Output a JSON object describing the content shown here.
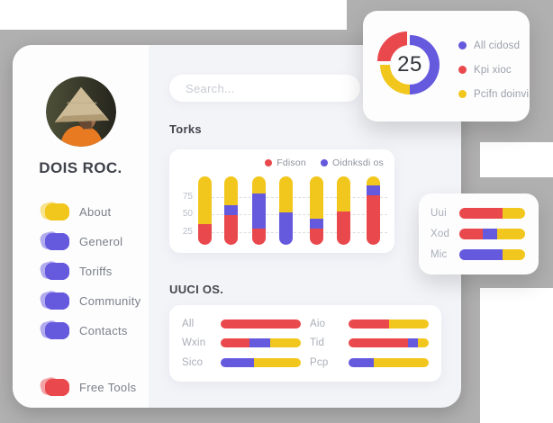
{
  "colors": {
    "red": "#e9494d",
    "yellow": "#f2c71d",
    "purple": "#6559dd",
    "backdrop_gray": "#b1b0b0"
  },
  "profile": {
    "name": "DOIS ROC.",
    "avatar": "person-wearing-conical-straw-hat"
  },
  "menu": {
    "items": [
      {
        "label": "About",
        "color": "#f2c71d"
      },
      {
        "label": "Generol",
        "color": "#6559dd"
      },
      {
        "label": "Toriffs",
        "color": "#6559dd"
      },
      {
        "label": "Community",
        "color": "#6559dd"
      },
      {
        "label": "Contacts",
        "color": "#6559dd"
      }
    ],
    "footer": {
      "label": "Free Tools",
      "color": "#e9494d"
    }
  },
  "search": {
    "placeholder": "Search..."
  },
  "torks": {
    "title": "Torks",
    "legend": [
      {
        "label": "Fdison",
        "color": "red"
      },
      {
        "label": "Oidnksdi os",
        "color": "purple"
      }
    ],
    "y_ticks": [
      "75",
      "50",
      "25"
    ],
    "bars": [
      {
        "segments": [
          {
            "color": "red",
            "pct": 30
          },
          {
            "color": "yellow",
            "pct": 70
          }
        ]
      },
      {
        "segments": [
          {
            "color": "red",
            "pct": 43
          },
          {
            "color": "purple",
            "pct": 15
          },
          {
            "color": "yellow",
            "pct": 42
          }
        ]
      },
      {
        "segments": [
          {
            "color": "red",
            "pct": 24
          },
          {
            "color": "purple",
            "pct": 51
          },
          {
            "color": "yellow",
            "pct": 25
          }
        ]
      },
      {
        "segments": [
          {
            "color": "purple",
            "pct": 48
          },
          {
            "color": "yellow",
            "pct": 52
          }
        ]
      },
      {
        "segments": [
          {
            "color": "red",
            "pct": 24
          },
          {
            "color": "purple",
            "pct": 14
          },
          {
            "color": "yellow",
            "pct": 62
          }
        ]
      },
      {
        "segments": [
          {
            "color": "red",
            "pct": 49
          },
          {
            "color": "yellow",
            "pct": 51
          }
        ]
      },
      {
        "segments": [
          {
            "color": "red",
            "pct": 73
          },
          {
            "color": "purple",
            "pct": 14
          },
          {
            "color": "yellow",
            "pct": 13
          }
        ]
      }
    ]
  },
  "uuci": {
    "title": "UUCI OS.",
    "rows": [
      {
        "label": "All",
        "segments": [
          {
            "color": "red",
            "pct": 100
          }
        ]
      },
      {
        "label": "Wxin",
        "segments": [
          {
            "color": "red",
            "pct": 36
          },
          {
            "color": "purple",
            "pct": 26
          },
          {
            "color": "yellow",
            "pct": 38
          }
        ]
      },
      {
        "label": "Sico",
        "segments": [
          {
            "color": "purple",
            "pct": 42
          },
          {
            "color": "yellow",
            "pct": 58
          }
        ]
      },
      {
        "label": "Aio",
        "segments": [
          {
            "color": "red",
            "pct": 50
          },
          {
            "color": "yellow",
            "pct": 50
          }
        ]
      },
      {
        "label": "Tid",
        "segments": [
          {
            "color": "red",
            "pct": 74
          },
          {
            "color": "purple",
            "pct": 13
          },
          {
            "color": "yellow",
            "pct": 13
          }
        ]
      },
      {
        "label": "Pcp",
        "segments": [
          {
            "color": "purple",
            "pct": 31
          },
          {
            "color": "yellow",
            "pct": 69
          }
        ]
      }
    ]
  },
  "donut": {
    "center_value": "25",
    "slices": [
      {
        "label": "All cidosd",
        "color": "purple",
        "pct": 50
      },
      {
        "label": "Kpi xioc",
        "color": "red",
        "pct": 25
      },
      {
        "label": "Pcifn doinvi",
        "color": "yellow",
        "pct": 25
      }
    ]
  },
  "mini": {
    "rows": [
      {
        "label": "Uui",
        "segments": [
          {
            "color": "red",
            "pct": 66
          },
          {
            "color": "yellow",
            "pct": 34
          }
        ]
      },
      {
        "label": "Xod",
        "segments": [
          {
            "color": "red",
            "pct": 36
          },
          {
            "color": "purple",
            "pct": 21
          },
          {
            "color": "yellow",
            "pct": 43
          }
        ]
      },
      {
        "label": "Mic",
        "segments": [
          {
            "color": "purple",
            "pct": 66
          },
          {
            "color": "yellow",
            "pct": 34
          }
        ]
      }
    ]
  }
}
